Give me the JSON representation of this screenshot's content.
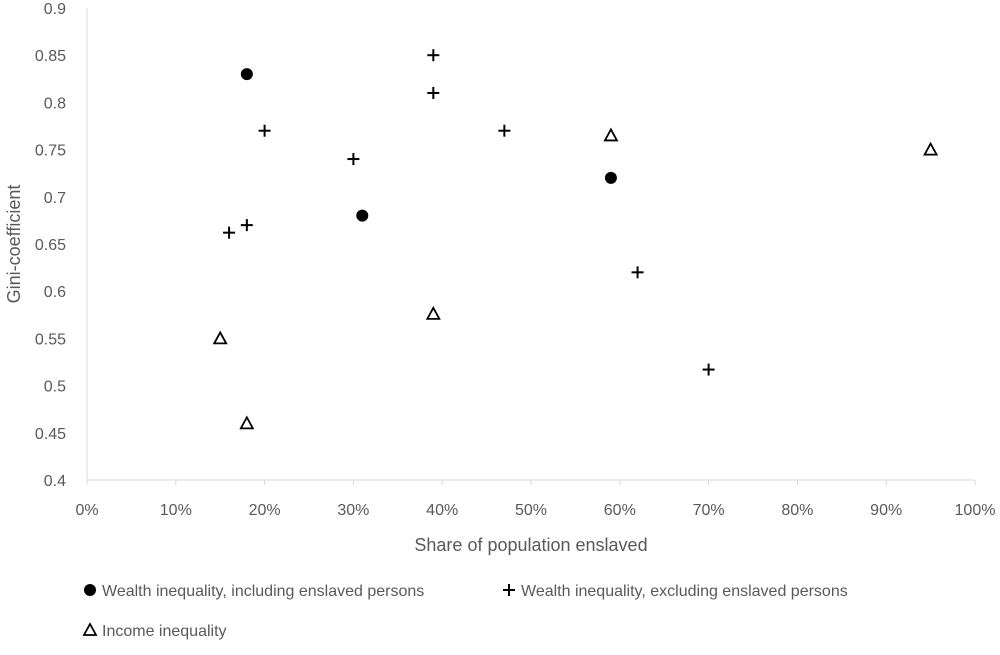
{
  "chart_data": {
    "type": "scatter",
    "title": "",
    "xlabel": "Share of population enslaved",
    "ylabel": "Gini-coefficient",
    "xlim": [
      0,
      1
    ],
    "ylim": [
      0.4,
      0.9
    ],
    "x_ticks": [
      {
        "v": 0,
        "label": "0%"
      },
      {
        "v": 0.1,
        "label": "10%"
      },
      {
        "v": 0.2,
        "label": "20%"
      },
      {
        "v": 0.3,
        "label": "30%"
      },
      {
        "v": 0.4,
        "label": "40%"
      },
      {
        "v": 0.5,
        "label": "50%"
      },
      {
        "v": 0.6,
        "label": "60%"
      },
      {
        "v": 0.7,
        "label": "70%"
      },
      {
        "v": 0.8,
        "label": "80%"
      },
      {
        "v": 0.9,
        "label": "90%"
      },
      {
        "v": 1.0,
        "label": "100%"
      }
    ],
    "y_ticks": [
      {
        "v": 0.4,
        "label": "0.4"
      },
      {
        "v": 0.45,
        "label": "0.45"
      },
      {
        "v": 0.5,
        "label": "0.5"
      },
      {
        "v": 0.55,
        "label": "0.55"
      },
      {
        "v": 0.6,
        "label": "0.6"
      },
      {
        "v": 0.65,
        "label": "0.65"
      },
      {
        "v": 0.7,
        "label": "0.7"
      },
      {
        "v": 0.75,
        "label": "0.75"
      },
      {
        "v": 0.8,
        "label": "0.8"
      },
      {
        "v": 0.85,
        "label": "0.85"
      },
      {
        "v": 0.9,
        "label": "0.9"
      }
    ],
    "grid": false,
    "legend_position": "bottom",
    "series": [
      {
        "name": "Wealth inequality, including enslaved persons",
        "marker": "circle",
        "color": "#000000",
        "points": [
          [
            0.18,
            0.83
          ],
          [
            0.31,
            0.68
          ],
          [
            0.59,
            0.72
          ]
        ]
      },
      {
        "name": "Wealth inequality, excluding enslaved persons",
        "marker": "plus",
        "color": "#000000",
        "points": [
          [
            0.39,
            0.85
          ],
          [
            0.39,
            0.81
          ],
          [
            0.2,
            0.77
          ],
          [
            0.47,
            0.77
          ],
          [
            0.3,
            0.74
          ],
          [
            0.18,
            0.67
          ],
          [
            0.16,
            0.662
          ],
          [
            0.62,
            0.62
          ],
          [
            0.7,
            0.517
          ]
        ]
      },
      {
        "name": "Income inequality",
        "marker": "triangle",
        "color": "#000000",
        "points": [
          [
            0.59,
            0.765
          ],
          [
            0.95,
            0.75
          ],
          [
            0.39,
            0.576
          ],
          [
            0.15,
            0.55
          ],
          [
            0.18,
            0.46
          ]
        ]
      }
    ]
  }
}
